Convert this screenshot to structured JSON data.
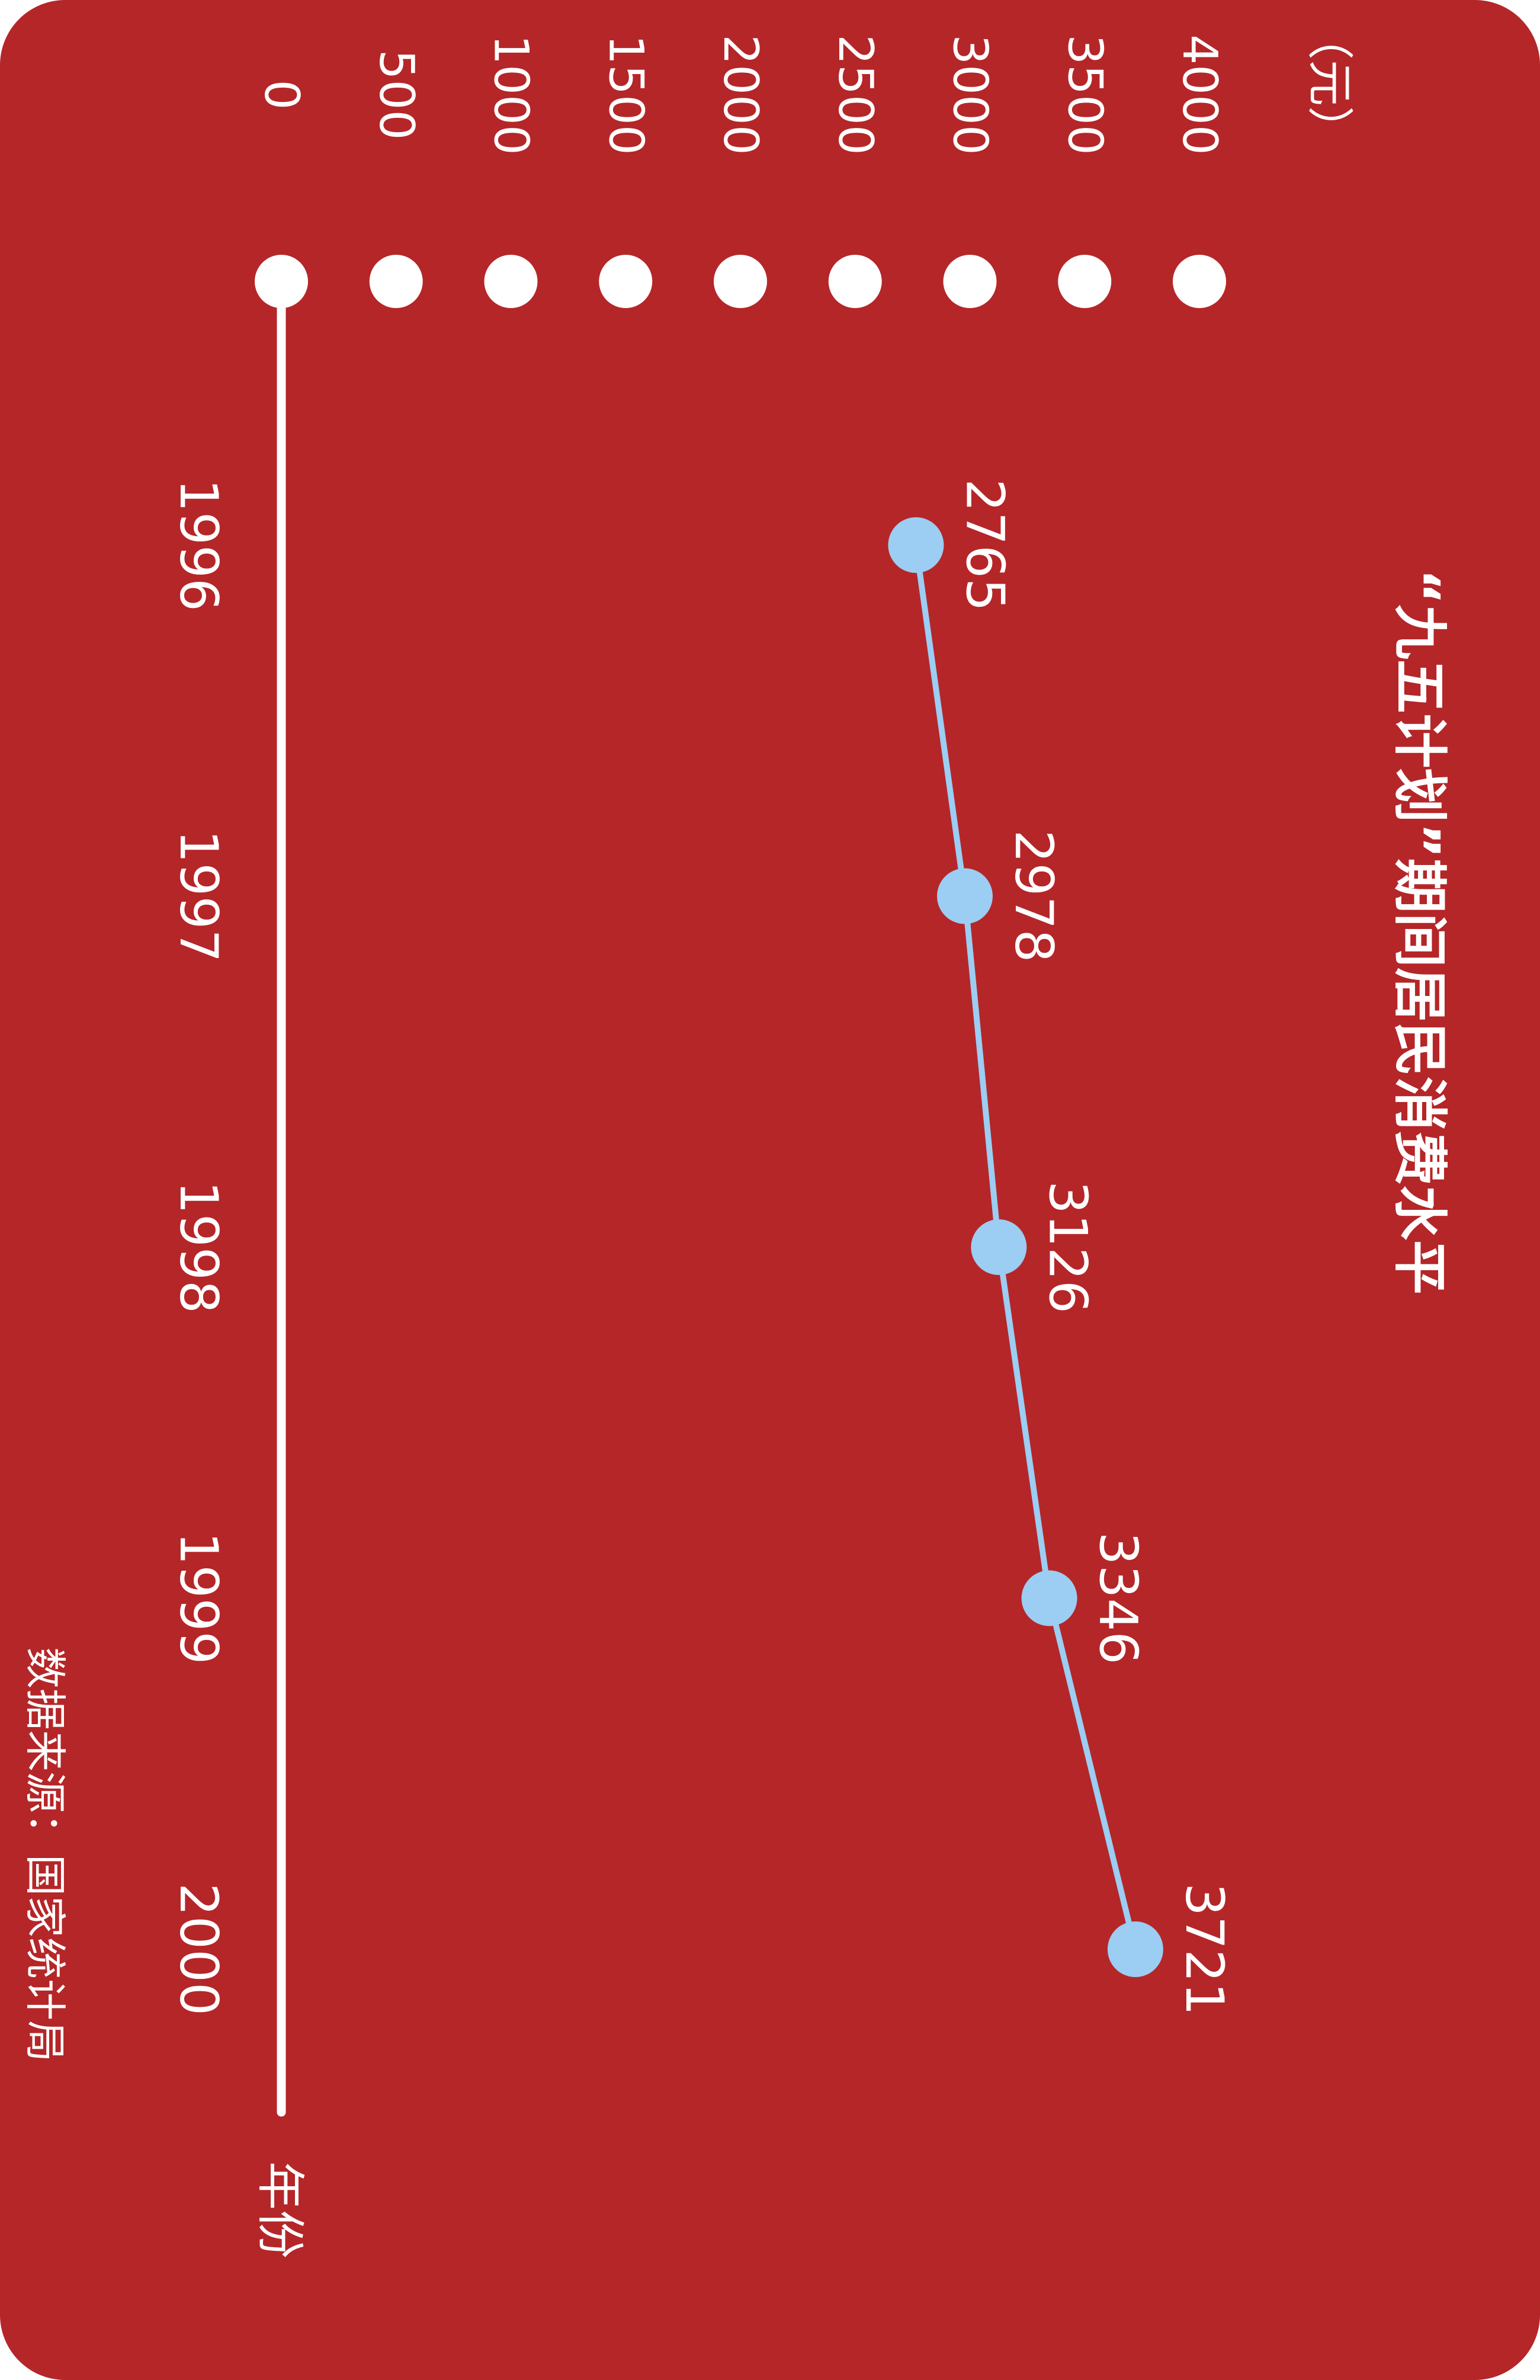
{
  "colors": {
    "background": "#b52628",
    "foreground": "#ffffff",
    "series": "#9ccdf2"
  },
  "source_note": "数据来源：国家统计局",
  "chart_data": {
    "type": "line",
    "orientation": "rotated-90-clockwise",
    "title": "“九五计划”期间居民消费水平",
    "xlabel": "年份",
    "ylabel": "（元）",
    "ylim": [
      0,
      4000
    ],
    "x_tick_labels": [
      "1996",
      "1997",
      "1998",
      "1999",
      "2000"
    ],
    "y_tick_labels": [
      "0",
      "500",
      "1000",
      "1500",
      "2000",
      "2500",
      "3000",
      "3500",
      "4000"
    ],
    "grid": false,
    "series": [
      {
        "values": [
          2765,
          2978,
          3126,
          3346,
          3721
        ],
        "labels": [
          "2765",
          "2978",
          "3126",
          "3346",
          "3721"
        ]
      }
    ]
  }
}
